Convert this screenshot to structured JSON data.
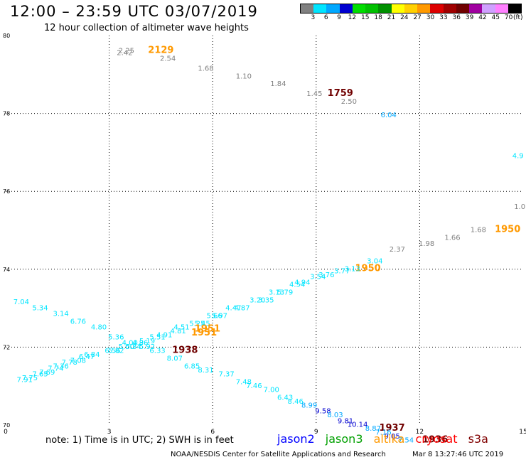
{
  "header": {
    "title": "12:00 – 23:59 UTC 03/07/2019",
    "subtitle": "12 hour collection of altimeter wave heights"
  },
  "colorbar": {
    "unit": "(ft)",
    "labels": [
      "3",
      "6",
      "9",
      "12",
      "15",
      "18",
      "21",
      "24",
      "27",
      "30",
      "33",
      "36",
      "39",
      "42",
      "45",
      "70"
    ],
    "colors": [
      "#808080",
      "#00e5ff",
      "#00a8ff",
      "#0000d0",
      "#00dd00",
      "#00c000",
      "#009000",
      "#ffff00",
      "#ffd000",
      "#ff9900",
      "#dd0000",
      "#a00000",
      "#700000",
      "#a000a0",
      "#d0a0ff",
      "#ff80ff",
      "#000000"
    ]
  },
  "footer": {
    "note": "note:  1) Time is in UTC;  2) SWH is in feet",
    "credit": "NOAA/NESDIS Center for Satellite Applications and Research",
    "timestamp": "Mar  8 13:27:46 UTC 2019"
  },
  "legend": [
    {
      "label": "jason2",
      "color": "#0000ff"
    },
    {
      "label": "jason3",
      "color": "#00a000"
    },
    {
      "label": "altika",
      "color": "#ff9900"
    },
    {
      "label": "cryosat",
      "color": "#ff0000"
    },
    {
      "label": "s3a",
      "color": "#800000"
    }
  ],
  "chart_data": {
    "type": "scatter",
    "title": "12:00 – 23:59 UTC 03/07/2019",
    "subtitle": "12 hour collection of altimeter wave heights",
    "xlim": [
      0,
      15
    ],
    "ylim": [
      70,
      80
    ],
    "x_ticks": [
      "0",
      "3",
      "6",
      "9",
      "12",
      "15"
    ],
    "y_ticks": [
      "70",
      "72",
      "74",
      "76",
      "78",
      "80"
    ],
    "grid": true,
    "points": [
      {
        "x": 3.5,
        "y": 79.55,
        "label": "2.25",
        "color": "#808080"
      },
      {
        "x": 3.45,
        "y": 79.5,
        "label": "2.42",
        "color": "#808080"
      },
      {
        "x": 4.5,
        "y": 79.55,
        "label": "2129",
        "color": "#ff9900",
        "track": true
      },
      {
        "x": 4.7,
        "y": 79.35,
        "label": "2.54",
        "color": "#808080"
      },
      {
        "x": 5.8,
        "y": 79.1,
        "label": "1.68",
        "color": "#808080"
      },
      {
        "x": 6.9,
        "y": 78.9,
        "label": "1.10",
        "color": "#808080"
      },
      {
        "x": 7.9,
        "y": 78.7,
        "label": "1.84",
        "color": "#808080"
      },
      {
        "x": 8.95,
        "y": 78.45,
        "label": "1.45",
        "color": "#808080"
      },
      {
        "x": 9.7,
        "y": 78.45,
        "label": "1759",
        "color": "#700000",
        "track": true
      },
      {
        "x": 9.95,
        "y": 78.25,
        "label": "2.50",
        "color": "#808080"
      },
      {
        "x": 11.1,
        "y": 77.9,
        "label": "6.04",
        "color": "#00a8ff"
      },
      {
        "x": 14.85,
        "y": 76.85,
        "label": "4.9",
        "color": "#00e5ff"
      },
      {
        "x": 14.9,
        "y": 75.55,
        "label": "1.0",
        "color": "#808080"
      },
      {
        "x": 13.7,
        "y": 74.95,
        "label": "1.68",
        "color": "#808080"
      },
      {
        "x": 14.55,
        "y": 74.95,
        "label": "1950",
        "color": "#ff9900",
        "track": true
      },
      {
        "x": 12.95,
        "y": 74.75,
        "label": "1.66",
        "color": "#808080"
      },
      {
        "x": 12.2,
        "y": 74.6,
        "label": "1.98",
        "color": "#808080"
      },
      {
        "x": 11.35,
        "y": 74.45,
        "label": "2.37",
        "color": "#808080"
      },
      {
        "x": 10.7,
        "y": 74.15,
        "label": "3.04",
        "color": "#00e5ff"
      },
      {
        "x": 10.5,
        "y": 73.95,
        "label": "1950",
        "color": "#ff9900",
        "track": true
      },
      {
        "x": 10.05,
        "y": 73.95,
        "label": "3.13",
        "color": "#00e5ff"
      },
      {
        "x": 9.75,
        "y": 73.9,
        "label": "3.77",
        "color": "#00e5ff"
      },
      {
        "x": 9.3,
        "y": 73.8,
        "label": "3.76",
        "color": "#00e5ff"
      },
      {
        "x": 9.05,
        "y": 73.75,
        "label": "3.54",
        "color": "#00e5ff"
      },
      {
        "x": 8.6,
        "y": 73.6,
        "label": "4.94",
        "color": "#00e5ff"
      },
      {
        "x": 8.45,
        "y": 73.55,
        "label": "4.54",
        "color": "#00e5ff"
      },
      {
        "x": 8.1,
        "y": 73.35,
        "label": "5.79",
        "color": "#00e5ff"
      },
      {
        "x": 7.85,
        "y": 73.35,
        "label": "3.13",
        "color": "#00e5ff"
      },
      {
        "x": 7.55,
        "y": 73.15,
        "label": "3.35",
        "color": "#00e5ff"
      },
      {
        "x": 7.3,
        "y": 73.15,
        "label": "3.20",
        "color": "#00e5ff"
      },
      {
        "x": 6.85,
        "y": 72.95,
        "label": "4.87",
        "color": "#00e5ff"
      },
      {
        "x": 6.6,
        "y": 72.95,
        "label": "4.47",
        "color": "#00e5ff"
      },
      {
        "x": 6.2,
        "y": 72.75,
        "label": "5.97",
        "color": "#00e5ff"
      },
      {
        "x": 6.05,
        "y": 72.75,
        "label": "5.66",
        "color": "#00e5ff"
      },
      {
        "x": 5.7,
        "y": 72.55,
        "label": "5.45",
        "color": "#00e5ff"
      },
      {
        "x": 5.55,
        "y": 72.55,
        "label": "5.25",
        "color": "#00e5ff"
      },
      {
        "x": 5.85,
        "y": 72.4,
        "label": "1951",
        "color": "#ff9900",
        "track": true
      },
      {
        "x": 5.75,
        "y": 72.3,
        "label": "1951",
        "color": "#ff9900",
        "track": true
      },
      {
        "x": 5.1,
        "y": 72.45,
        "label": "4.51",
        "color": "#00e5ff"
      },
      {
        "x": 5.0,
        "y": 72.35,
        "label": "4.81",
        "color": "#00e5ff"
      },
      {
        "x": 4.6,
        "y": 72.25,
        "label": "4.91",
        "color": "#00e5ff"
      },
      {
        "x": 4.4,
        "y": 72.2,
        "label": "5.51",
        "color": "#00e5ff"
      },
      {
        "x": 4.1,
        "y": 72.1,
        "label": "5.19",
        "color": "#00e5ff"
      },
      {
        "x": 3.9,
        "y": 72.05,
        "label": "4.86",
        "color": "#00e5ff"
      },
      {
        "x": 3.6,
        "y": 72.05,
        "label": "4.00",
        "color": "#00e5ff"
      },
      {
        "x": 3.7,
        "y": 71.95,
        "label": "5.34",
        "color": "#00e5ff"
      },
      {
        "x": 3.5,
        "y": 71.95,
        "label": "5.00",
        "color": "#00e5ff"
      },
      {
        "x": 3.2,
        "y": 71.85,
        "label": "5.82",
        "color": "#00e5ff"
      },
      {
        "x": 3.1,
        "y": 71.85,
        "label": "6.56",
        "color": "#00e5ff"
      },
      {
        "x": 4.1,
        "y": 71.95,
        "label": "5.92",
        "color": "#00e5ff"
      },
      {
        "x": 3.2,
        "y": 72.2,
        "label": "5.36",
        "color": "#00e5ff"
      },
      {
        "x": 2.7,
        "y": 72.45,
        "label": "4.80",
        "color": "#00e5ff"
      },
      {
        "x": 2.1,
        "y": 72.6,
        "label": "6.76",
        "color": "#00e5ff"
      },
      {
        "x": 1.6,
        "y": 72.8,
        "label": "3.14",
        "color": "#00e5ff"
      },
      {
        "x": 1.0,
        "y": 72.95,
        "label": "5.34",
        "color": "#00e5ff"
      },
      {
        "x": 0.45,
        "y": 73.1,
        "label": "7.04",
        "color": "#00e5ff"
      },
      {
        "x": 2.5,
        "y": 71.75,
        "label": "6.84",
        "color": "#00e5ff"
      },
      {
        "x": 2.35,
        "y": 71.7,
        "label": "6.47",
        "color": "#00e5ff"
      },
      {
        "x": 2.1,
        "y": 71.6,
        "label": "7.08",
        "color": "#00e5ff"
      },
      {
        "x": 1.85,
        "y": 71.55,
        "label": "7.78",
        "color": "#00e5ff"
      },
      {
        "x": 1.6,
        "y": 71.45,
        "label": "7.36",
        "color": "#00e5ff"
      },
      {
        "x": 1.45,
        "y": 71.4,
        "label": "7.74",
        "color": "#00e5ff"
      },
      {
        "x": 1.2,
        "y": 71.3,
        "label": "7.69",
        "color": "#00e5ff"
      },
      {
        "x": 1.0,
        "y": 71.25,
        "label": "7.65",
        "color": "#00e5ff"
      },
      {
        "x": 0.7,
        "y": 71.15,
        "label": "7.75",
        "color": "#00e5ff"
      },
      {
        "x": 0.55,
        "y": 71.1,
        "label": "7.91",
        "color": "#00e5ff"
      },
      {
        "x": 4.4,
        "y": 71.85,
        "label": "6.33",
        "color": "#00e5ff"
      },
      {
        "x": 5.2,
        "y": 71.85,
        "label": "1938",
        "color": "#700000",
        "track": true
      },
      {
        "x": 4.9,
        "y": 71.65,
        "label": "8.07",
        "color": "#00e5ff"
      },
      {
        "x": 5.4,
        "y": 71.45,
        "label": "6.85",
        "color": "#00e5ff"
      },
      {
        "x": 5.8,
        "y": 71.35,
        "label": "8.31",
        "color": "#00e5ff"
      },
      {
        "x": 6.4,
        "y": 71.25,
        "label": "7.37",
        "color": "#00e5ff"
      },
      {
        "x": 6.9,
        "y": 71.05,
        "label": "7.48",
        "color": "#00e5ff"
      },
      {
        "x": 7.2,
        "y": 70.95,
        "label": "7.46",
        "color": "#00e5ff"
      },
      {
        "x": 7.7,
        "y": 70.85,
        "label": "7.00",
        "color": "#00e5ff"
      },
      {
        "x": 8.1,
        "y": 70.65,
        "label": "6.43",
        "color": "#00e5ff"
      },
      {
        "x": 8.4,
        "y": 70.55,
        "label": "8.46",
        "color": "#00e5ff"
      },
      {
        "x": 8.8,
        "y": 70.45,
        "label": "8.99",
        "color": "#00a8ff"
      },
      {
        "x": 9.2,
        "y": 70.3,
        "label": "9.58",
        "color": "#0000d0"
      },
      {
        "x": 9.55,
        "y": 70.2,
        "label": "8.03",
        "color": "#00a8ff"
      },
      {
        "x": 9.85,
        "y": 70.05,
        "label": "9.81",
        "color": "#0000d0"
      },
      {
        "x": 10.2,
        "y": 69.95,
        "label": "10.14",
        "color": "#0000d0"
      },
      {
        "x": 10.65,
        "y": 69.85,
        "label": "8.87",
        "color": "#00a8ff"
      },
      {
        "x": 11.2,
        "y": 69.85,
        "label": "1937",
        "color": "#700000",
        "track": true
      },
      {
        "x": 10.95,
        "y": 69.75,
        "label": "7.16",
        "color": "#00a8ff"
      },
      {
        "x": 11.2,
        "y": 69.65,
        "label": "9.05",
        "color": "#0000d0"
      },
      {
        "x": 11.6,
        "y": 69.55,
        "label": "7.54",
        "color": "#00a8ff"
      },
      {
        "x": 12.45,
        "y": 69.55,
        "label": "1936",
        "color": "#700000",
        "track": true
      }
    ]
  }
}
